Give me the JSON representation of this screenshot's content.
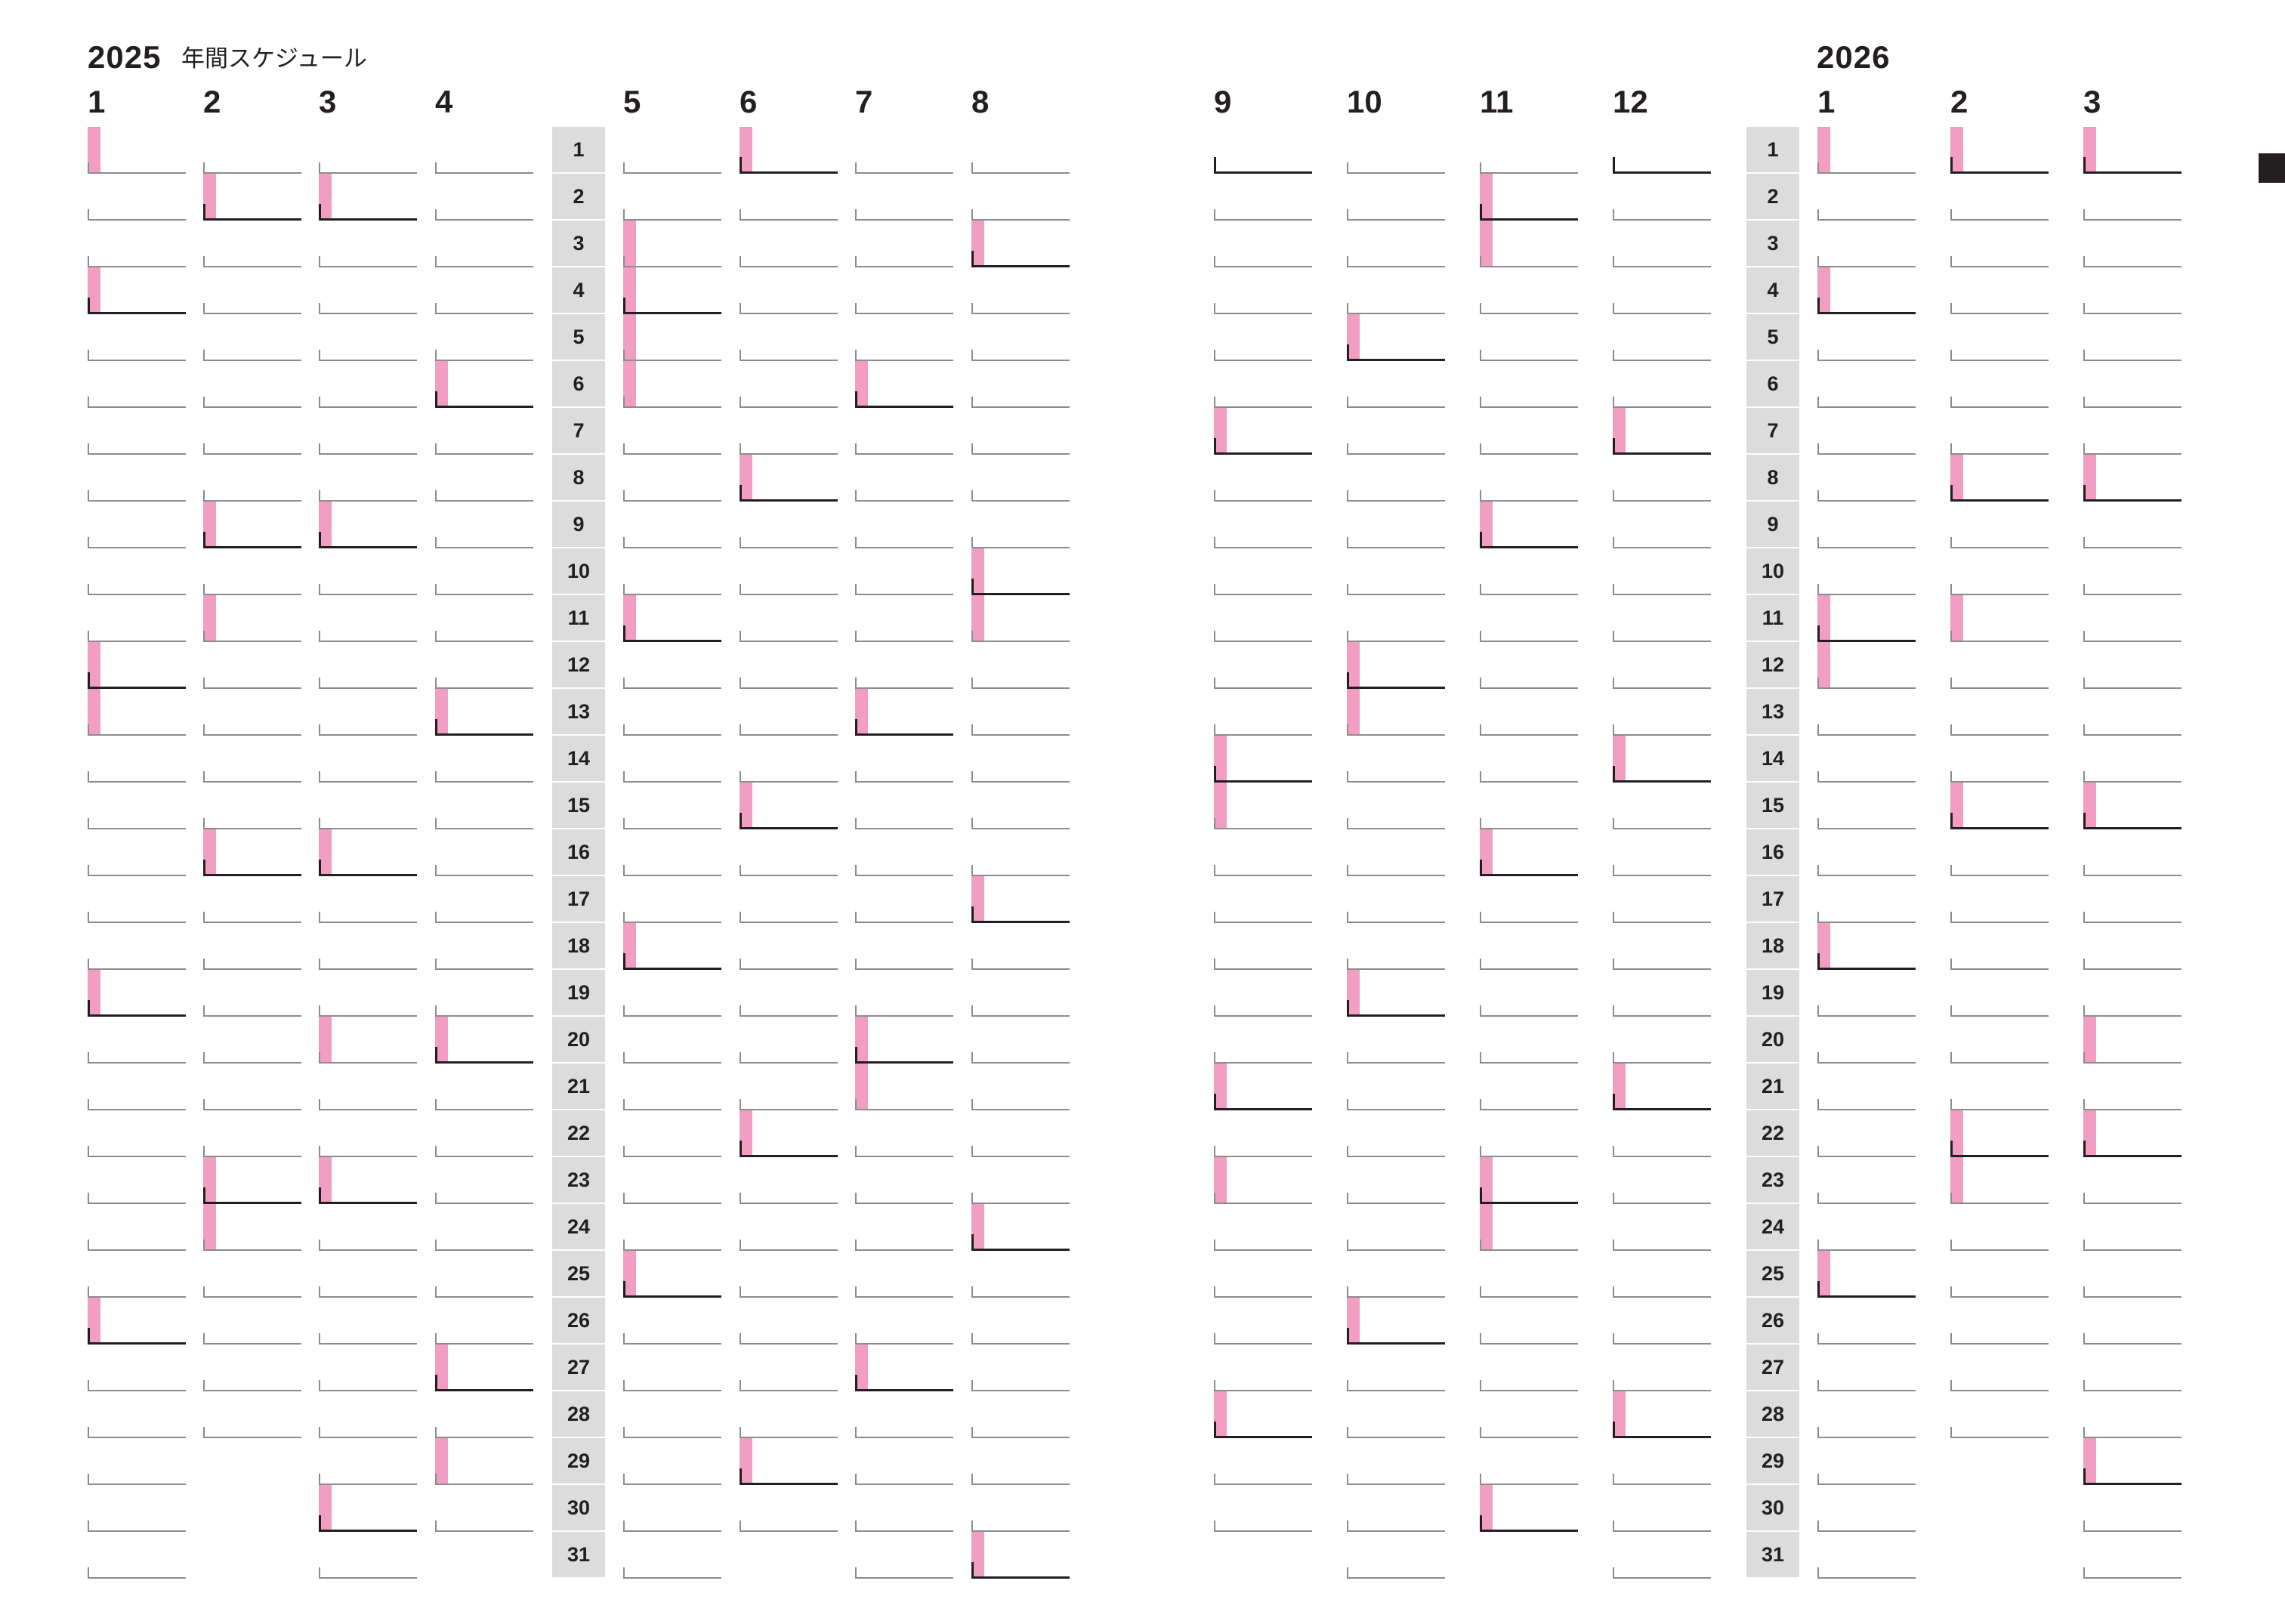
{
  "title": {
    "year_start": "2025",
    "label": "年間スケジュール",
    "year_next": "2026"
  },
  "colors": {
    "holiday": "#f19ec2",
    "weekend_line": "#231f20",
    "weekday_line": "#8c8c8c",
    "day_column_bg": "#dcdcdc"
  },
  "day_numbers": [
    "1",
    "2",
    "3",
    "4",
    "5",
    "6",
    "7",
    "8",
    "9",
    "10",
    "11",
    "12",
    "13",
    "14",
    "15",
    "16",
    "17",
    "18",
    "19",
    "20",
    "21",
    "22",
    "23",
    "24",
    "25",
    "26",
    "27",
    "28",
    "29",
    "30",
    "31"
  ],
  "left_page": {
    "year": "2025",
    "months_before_day_column": [
      {
        "label": "1",
        "days": 31,
        "holidays": [
          1,
          4,
          12,
          13,
          19,
          26
        ],
        "weekends": [
          4,
          12,
          19,
          26
        ]
      },
      {
        "label": "2",
        "days": 28,
        "holidays": [
          2,
          9,
          11,
          16,
          23,
          24
        ],
        "weekends": [
          2,
          9,
          16,
          23
        ]
      },
      {
        "label": "3",
        "days": 31,
        "holidays": [
          2,
          9,
          16,
          20,
          23,
          30
        ],
        "weekends": [
          2,
          9,
          16,
          23,
          30
        ]
      },
      {
        "label": "4",
        "days": 30,
        "holidays": [
          6,
          13,
          20,
          27,
          29
        ],
        "weekends": [
          6,
          13,
          20,
          27
        ]
      }
    ],
    "months_after_day_column": [
      {
        "label": "5",
        "days": 31,
        "holidays": [
          3,
          4,
          5,
          6,
          11,
          18,
          25
        ],
        "weekends": [
          4,
          11,
          18,
          25
        ]
      },
      {
        "label": "6",
        "days": 30,
        "holidays": [
          1,
          8,
          15,
          22,
          29
        ],
        "weekends": [
          1,
          8,
          15,
          22,
          29
        ]
      },
      {
        "label": "7",
        "days": 31,
        "holidays": [
          6,
          13,
          20,
          21,
          27
        ],
        "weekends": [
          6,
          13,
          20,
          27
        ]
      },
      {
        "label": "8",
        "days": 31,
        "holidays": [
          3,
          10,
          11,
          17,
          24,
          31
        ],
        "weekends": [
          3,
          10,
          17,
          24,
          31
        ]
      }
    ]
  },
  "right_page": {
    "year_next": "2026",
    "months_before_day_column": [
      {
        "label": "9",
        "days": 30,
        "holidays": [
          7,
          14,
          15,
          21,
          23,
          28
        ],
        "weekends": [
          1,
          7,
          14,
          21,
          28
        ]
      },
      {
        "label": "10",
        "days": 31,
        "holidays": [
          5,
          12,
          13,
          19,
          26
        ],
        "weekends": [
          5,
          12,
          19,
          26
        ]
      },
      {
        "label": "11",
        "days": 30,
        "holidays": [
          2,
          3,
          9,
          16,
          23,
          24,
          30
        ],
        "weekends": [
          2,
          9,
          16,
          23,
          30
        ]
      },
      {
        "label": "12",
        "days": 31,
        "holidays": [
          7,
          14,
          21,
          28
        ],
        "weekends": [
          1,
          7,
          14,
          21,
          28
        ]
      }
    ],
    "months_after_day_column": [
      {
        "label": "1",
        "days": 31,
        "holidays": [
          1,
          4,
          11,
          12,
          18,
          25
        ],
        "weekends": [
          4,
          11,
          18,
          25
        ]
      },
      {
        "label": "2",
        "days": 28,
        "holidays": [
          1,
          8,
          11,
          15,
          22,
          23
        ],
        "weekends": [
          1,
          8,
          15,
          22
        ]
      },
      {
        "label": "3",
        "days": 31,
        "holidays": [
          1,
          8,
          15,
          20,
          22,
          29
        ],
        "weekends": [
          1,
          8,
          15,
          22,
          29
        ]
      }
    ]
  }
}
